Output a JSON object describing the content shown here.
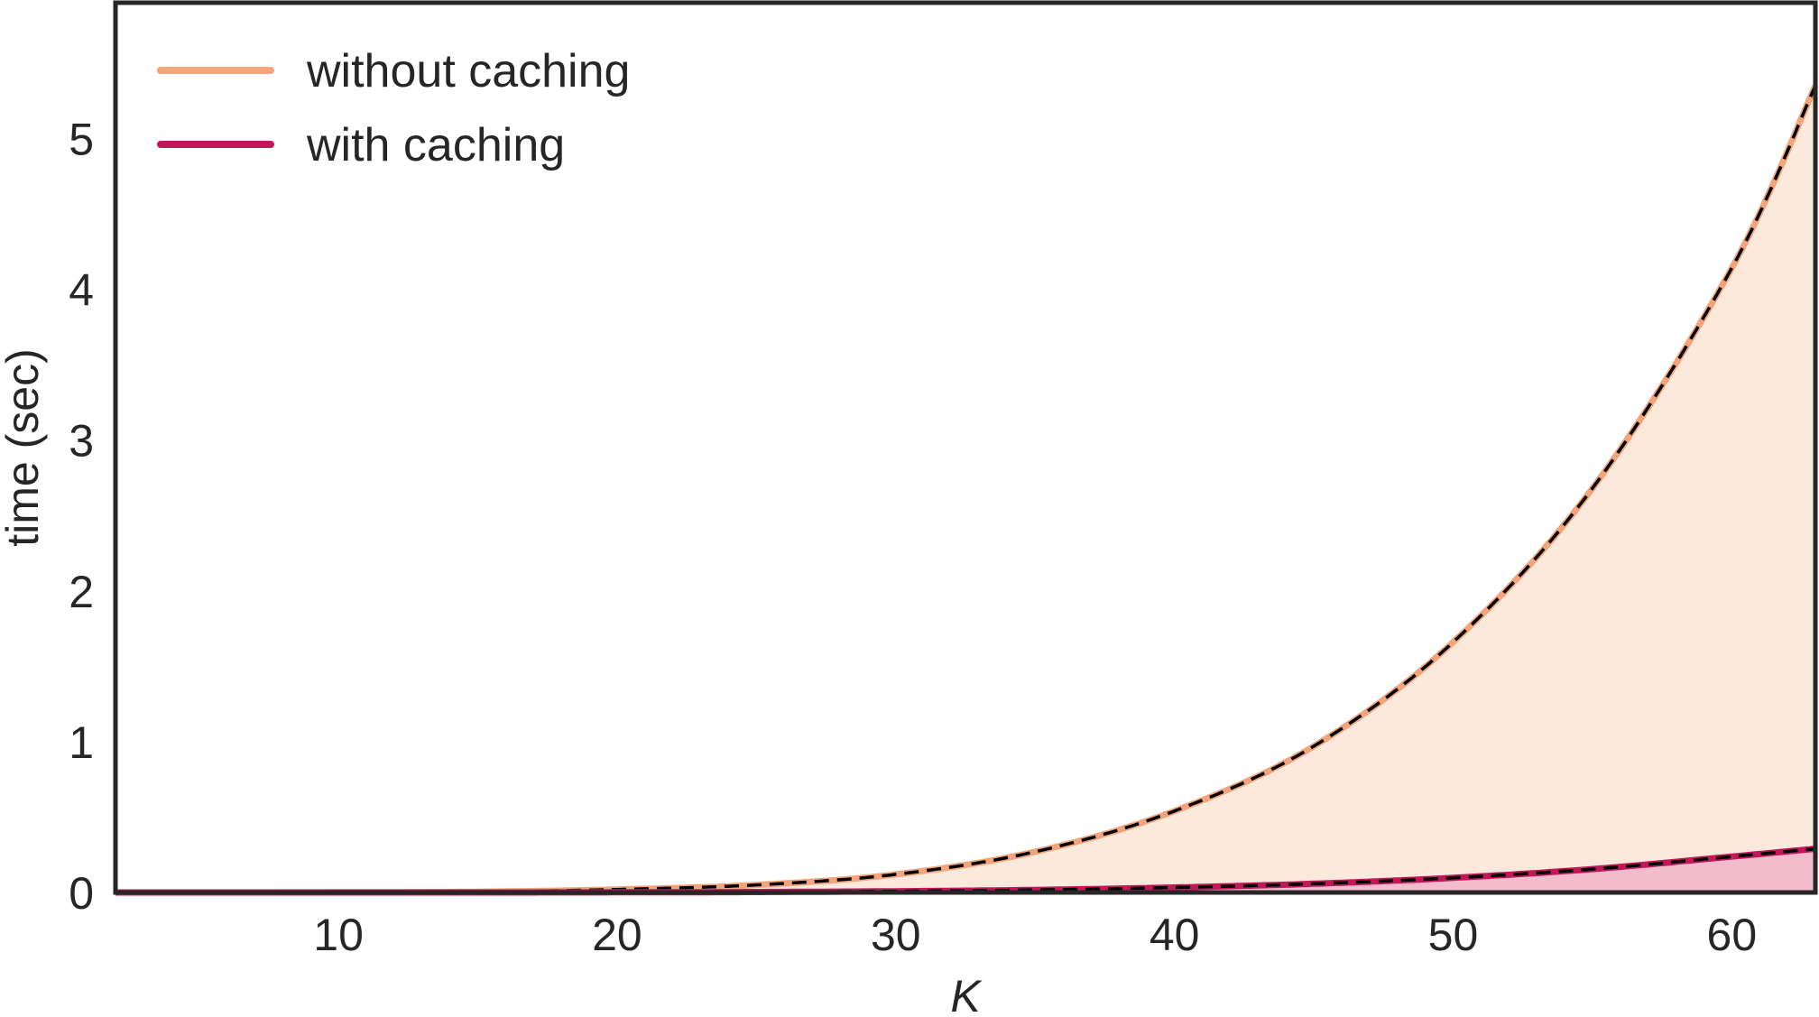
{
  "chart_data": {
    "type": "line",
    "title": "",
    "xlabel": "K",
    "ylabel": "time (sec)",
    "xlim": [
      2,
      63
    ],
    "ylim": [
      0,
      5.9
    ],
    "xticks": [
      10,
      20,
      30,
      40,
      50,
      60
    ],
    "yticks": [
      0,
      1,
      2,
      3,
      4,
      5
    ],
    "grid": false,
    "legend_position": "top-left",
    "x": [
      2,
      5,
      10,
      15,
      20,
      25,
      30,
      35,
      40,
      45,
      50,
      55,
      60,
      63
    ],
    "series": [
      {
        "name": "without caching",
        "color": "#f4a47a",
        "fill": "#fbeadb",
        "values": [
          0.0,
          0.0,
          0.001,
          0.005,
          0.02,
          0.05,
          0.12,
          0.27,
          0.54,
          0.97,
          1.66,
          2.68,
          4.14,
          5.35
        ]
      },
      {
        "name": "with caching",
        "color": "#c2185b",
        "fill": "#f2bccd",
        "values": [
          0.0,
          0.0,
          0.0,
          0.0,
          0.001,
          0.003,
          0.008,
          0.017,
          0.033,
          0.058,
          0.097,
          0.155,
          0.238,
          0.29
        ]
      }
    ],
    "fit_line_color": "#000000"
  }
}
